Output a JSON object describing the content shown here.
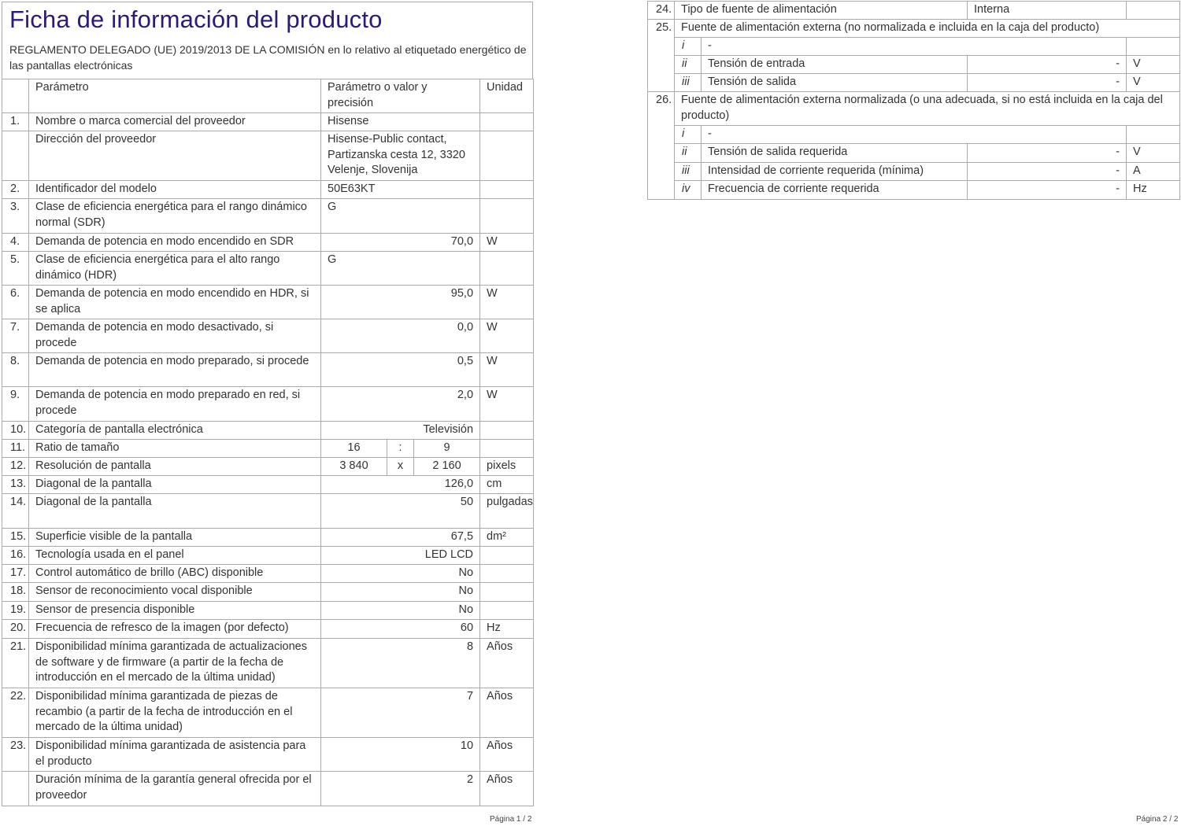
{
  "page1": {
    "title": "Ficha de información del producto",
    "subtitle": "REGLAMENTO DELEGADO (UE) 2019/2013 DE LA COMISIÓN en lo relativo al etiquetado energético de las pantallas electrónicas",
    "headers": {
      "param": "Parámetro",
      "value": "Parámetro o valor y precisión",
      "unit": "Unidad"
    },
    "rows": [
      {
        "n": "1.",
        "p": "Nombre o marca comercial del proveedor",
        "v": "Hisense",
        "u": ""
      },
      {
        "n": "",
        "p": "Dirección del proveedor",
        "v": "Hisense-Public contact, Partizanska cesta 12, 3320 Velenje, Slovenija",
        "u": ""
      },
      {
        "n": "2.",
        "p": "Identificador del modelo",
        "v": "50E63KT",
        "u": ""
      },
      {
        "n": "3.",
        "p": "Clase de eficiencia energética para el rango dinámico normal (SDR)",
        "v": "G",
        "u": ""
      },
      {
        "n": "4.",
        "p": "Demanda de potencia en modo encendido en SDR",
        "v": "70,0",
        "u": "W"
      },
      {
        "n": "5.",
        "p": "Clase de eficiencia energética para el alto rango dinámico (HDR)",
        "v": "G",
        "u": ""
      },
      {
        "n": "6.",
        "p": "Demanda de potencia en modo encendido en HDR, si se aplica",
        "v": "95,0",
        "u": "W"
      },
      {
        "n": "7.",
        "p": "Demanda de potencia en modo desactivado, si procede",
        "v": "0,0",
        "u": "W"
      },
      {
        "n": "8.",
        "p": "Demanda de potencia en modo preparado, si procede",
        "v": "0,5",
        "u": "W"
      },
      {
        "n": "9.",
        "p": "Demanda de potencia en modo preparado en red, si procede",
        "v": "2,0",
        "u": "W"
      },
      {
        "n": "10.",
        "p": "Categoría de pantalla electrónica",
        "v": "Televisión",
        "u": ""
      },
      {
        "n": "11.",
        "p": "Ratio de tamaño",
        "a": "16",
        "s": ":",
        "b": "9",
        "u": ""
      },
      {
        "n": "12.",
        "p": "Resolución de pantalla",
        "a": "3 840",
        "s": "x",
        "b": "2 160",
        "u": "pixels"
      },
      {
        "n": "13.",
        "p": "Diagonal de la pantalla",
        "v": "126,0",
        "u": "cm"
      },
      {
        "n": "14.",
        "p": "Diagonal de la pantalla",
        "v": "50",
        "u": "pulgadas"
      },
      {
        "n": "15.",
        "p": "Superficie visible de la pantalla",
        "v": "67,5",
        "u": "dm²"
      },
      {
        "n": "16.",
        "p": "Tecnología usada en el panel",
        "v": "LED LCD",
        "u": ""
      },
      {
        "n": "17.",
        "p": "Control automático de brillo (ABC) disponible",
        "v": "No",
        "u": ""
      },
      {
        "n": "18.",
        "p": "Sensor de reconocimiento vocal disponible",
        "v": "No",
        "u": ""
      },
      {
        "n": "19.",
        "p": "Sensor de presencia disponible",
        "v": "No",
        "u": ""
      },
      {
        "n": "20.",
        "p": "Frecuencia de refresco de la imagen (por defecto)",
        "v": "60",
        "u": "Hz"
      },
      {
        "n": "21.",
        "p": "Disponibilidad mínima garantizada de actualizaciones de software y de firmware (a partir de la fecha de introducción en el mercado de la última unidad)",
        "v": "8",
        "u": "Años"
      },
      {
        "n": "22.",
        "p": "Disponibilidad mínima garantizada de piezas de recambio (a partir de la fecha de introducción en el mercado de la última unidad)",
        "v": "7",
        "u": "Años"
      },
      {
        "n": "23.",
        "p": "Disponibilidad mínima garantizada de asistencia para el producto",
        "v": "10",
        "u": "Años"
      },
      {
        "n": "",
        "p": "Duración mínima de la garantía general ofrecida por el proveedor",
        "v": "2",
        "u": "Años"
      }
    ],
    "footer": "Página 1 / 2"
  },
  "page2": {
    "r24": {
      "n": "24.",
      "p": "Tipo de fuente de alimentación",
      "v": "Interna"
    },
    "r25": {
      "n": "25.",
      "p": "Fuente de alimentación externa (no normalizada e incluida en la caja del producto)",
      "sub": [
        {
          "k": "i",
          "p": "-"
        },
        {
          "k": "ii",
          "p": "Tensión de entrada",
          "v": "-",
          "u": "V"
        },
        {
          "k": "iii",
          "p": "Tensión de salida",
          "v": "-",
          "u": "V"
        }
      ]
    },
    "r26": {
      "n": "26.",
      "p": "Fuente de alimentación externa normalizada (o una adecuada, si no está incluida en la caja del producto)",
      "sub": [
        {
          "k": "i",
          "p": "-"
        },
        {
          "k": "ii",
          "p": "Tensión de salida requerida",
          "v": "-",
          "u": "V"
        },
        {
          "k": "iii",
          "p": "Intensidad de corriente requerida (mínima)",
          "v": "-",
          "u": "A"
        },
        {
          "k": "iv",
          "p": "Frecuencia de corriente requerida",
          "v": "-",
          "u": "Hz"
        }
      ]
    },
    "footer": "Página 2 / 2"
  }
}
